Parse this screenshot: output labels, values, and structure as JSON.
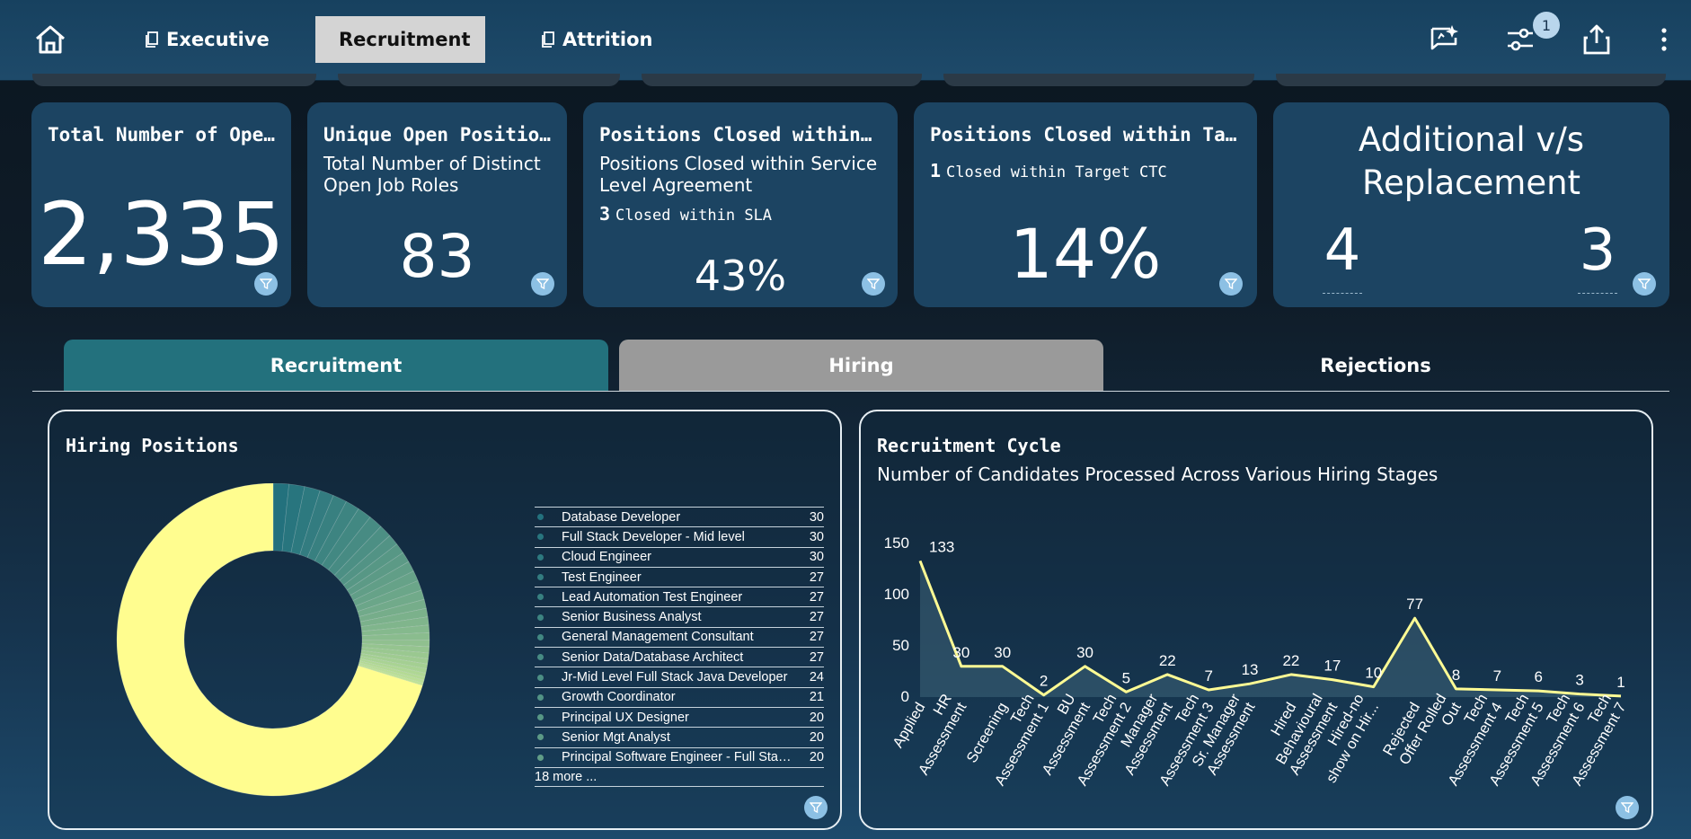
{
  "nav": {
    "tabs": [
      {
        "label": "Executive"
      },
      {
        "label": "Recruitment"
      },
      {
        "label": "Attrition"
      }
    ],
    "filter_count": "1"
  },
  "kpis": {
    "total_open": {
      "title": "Total Number of Open Positions",
      "value": "2,335"
    },
    "unique_open": {
      "title": "Unique Open Positions",
      "subtitle": "Total Number of Distinct Open Job Roles",
      "value": "83"
    },
    "closed_sla": {
      "title": "Positions Closed within SLA",
      "subtitle": "Positions Closed within Service Level Agreement",
      "note_count": "3",
      "note_text": "Closed within SLA",
      "value": "43%"
    },
    "closed_ctc": {
      "title": "Positions Closed within Target CTC",
      "note_count": "1",
      "note_text": "Closed within Target CTC",
      "value": "14%"
    },
    "additional": {
      "title": "Additional v/s Replacement",
      "additional": "4",
      "replacement": "3"
    }
  },
  "section_tabs": {
    "recruitment": "Recruitment",
    "hiring": "Hiring",
    "rejections": "Rejections"
  },
  "colors": {
    "accent_teal": "#23717d",
    "donut_big": "#fffd8f",
    "line": "#fffb94"
  },
  "hiring_positions": {
    "title": "Hiring Positions",
    "more_label": "18 more ...",
    "chart_data": {
      "type": "pie",
      "hole": true,
      "categories": [
        "Database Developer",
        "Full Stack Developer - Mid level",
        "Cloud Engineer",
        "Test Engineer",
        "Lead Automation Test Engineer",
        "Senior Business Analyst",
        "General Management Consultant",
        "Senior Data/Database Architect",
        "Jr-Mid Level Full Stack Java Developer",
        "Growth Coordinator",
        "Principal UX Designer",
        "Senior Mgt Analyst",
        "Principal Software Engineer - Full Stack..."
      ],
      "values": [
        30,
        30,
        30,
        27,
        27,
        27,
        27,
        27,
        24,
        21,
        20,
        20,
        20
      ]
    }
  },
  "recruitment_cycle": {
    "title": "Recruitment Cycle",
    "subtitle": "Number of Candidates Processed Across Various Hiring Stages",
    "chart_data": {
      "type": "area",
      "categories": [
        "Applied",
        "HR Assessment",
        "Screening",
        "Tech Assessment 1",
        "BU Assessment",
        "Tech Assessment 2",
        "Manager Assessment",
        "Tech Assessment 3",
        "Sr. Manager Assessment",
        "Hired",
        "Behavioural Assessment",
        "Hired-no show on Hir...",
        "Rejected",
        "Offer Rolled Out",
        "Tech Assessment 4",
        "Tech Assessment 5",
        "Tech Assessment 6",
        "Tech Assessment 7"
      ],
      "values": [
        133,
        30,
        30,
        2,
        30,
        5,
        22,
        7,
        13,
        22,
        17,
        10,
        77,
        8,
        7,
        6,
        3,
        1
      ],
      "ylim": [
        0,
        150
      ],
      "yticks": [
        0,
        50,
        100,
        150
      ]
    }
  }
}
